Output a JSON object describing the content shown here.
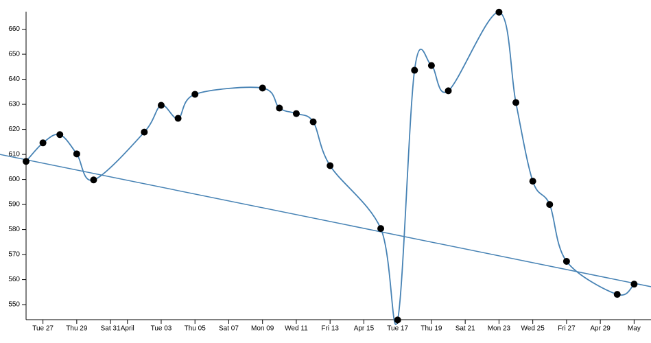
{
  "chart_data": {
    "type": "line",
    "smooth": true,
    "markers": true,
    "marker_color": "#000000",
    "x": [
      26,
      27,
      28,
      29,
      30,
      33,
      34,
      35,
      36,
      40,
      41,
      42,
      43,
      44,
      47,
      48,
      49,
      50,
      51,
      54,
      55,
      56,
      57,
      58,
      61,
      62
    ],
    "series": [
      {
        "color": "#4682b4",
        "values": [
          607.2,
          614.6,
          617.9,
          610.2,
          599.8,
          618.9,
          629.6,
          624.4,
          634.0,
          636.5,
          628.5,
          626.3,
          623.0,
          605.5,
          580.4,
          543.9,
          643.6,
          645.5,
          635.4,
          666.8,
          630.7,
          599.3,
          590.0,
          567.3,
          554.1,
          558.2
        ]
      }
    ],
    "trendline": {
      "color": "#4682b4",
      "x": [
        24.45,
        63.05
      ],
      "values": [
        610,
        557.1
      ]
    },
    "xlim": [
      26,
      63
    ],
    "ylim": [
      544,
      667
    ],
    "xticks": [
      {
        "value": 27,
        "label": "Tue 27"
      },
      {
        "value": 29,
        "label": "Thu 29"
      },
      {
        "value": 31,
        "label": "Sat 31"
      },
      {
        "value": 32,
        "label": "April"
      },
      {
        "value": 34,
        "label": "Tue 03"
      },
      {
        "value": 36,
        "label": "Thu 05"
      },
      {
        "value": 38,
        "label": "Sat 07"
      },
      {
        "value": 40,
        "label": "Mon 09"
      },
      {
        "value": 42,
        "label": "Wed 11"
      },
      {
        "value": 44,
        "label": "Fri 13"
      },
      {
        "value": 46,
        "label": "Apr 15"
      },
      {
        "value": 48,
        "label": "Tue 17"
      },
      {
        "value": 50,
        "label": "Thu 19"
      },
      {
        "value": 52,
        "label": "Sat 21"
      },
      {
        "value": 54,
        "label": "Mon 23"
      },
      {
        "value": 56,
        "label": "Wed 25"
      },
      {
        "value": 58,
        "label": "Fri 27"
      },
      {
        "value": 60,
        "label": "Apr 29"
      },
      {
        "value": 62,
        "label": "May"
      }
    ],
    "yticks": [
      550,
      560,
      570,
      580,
      590,
      600,
      610,
      620,
      630,
      640,
      650,
      660
    ],
    "grid": false
  }
}
